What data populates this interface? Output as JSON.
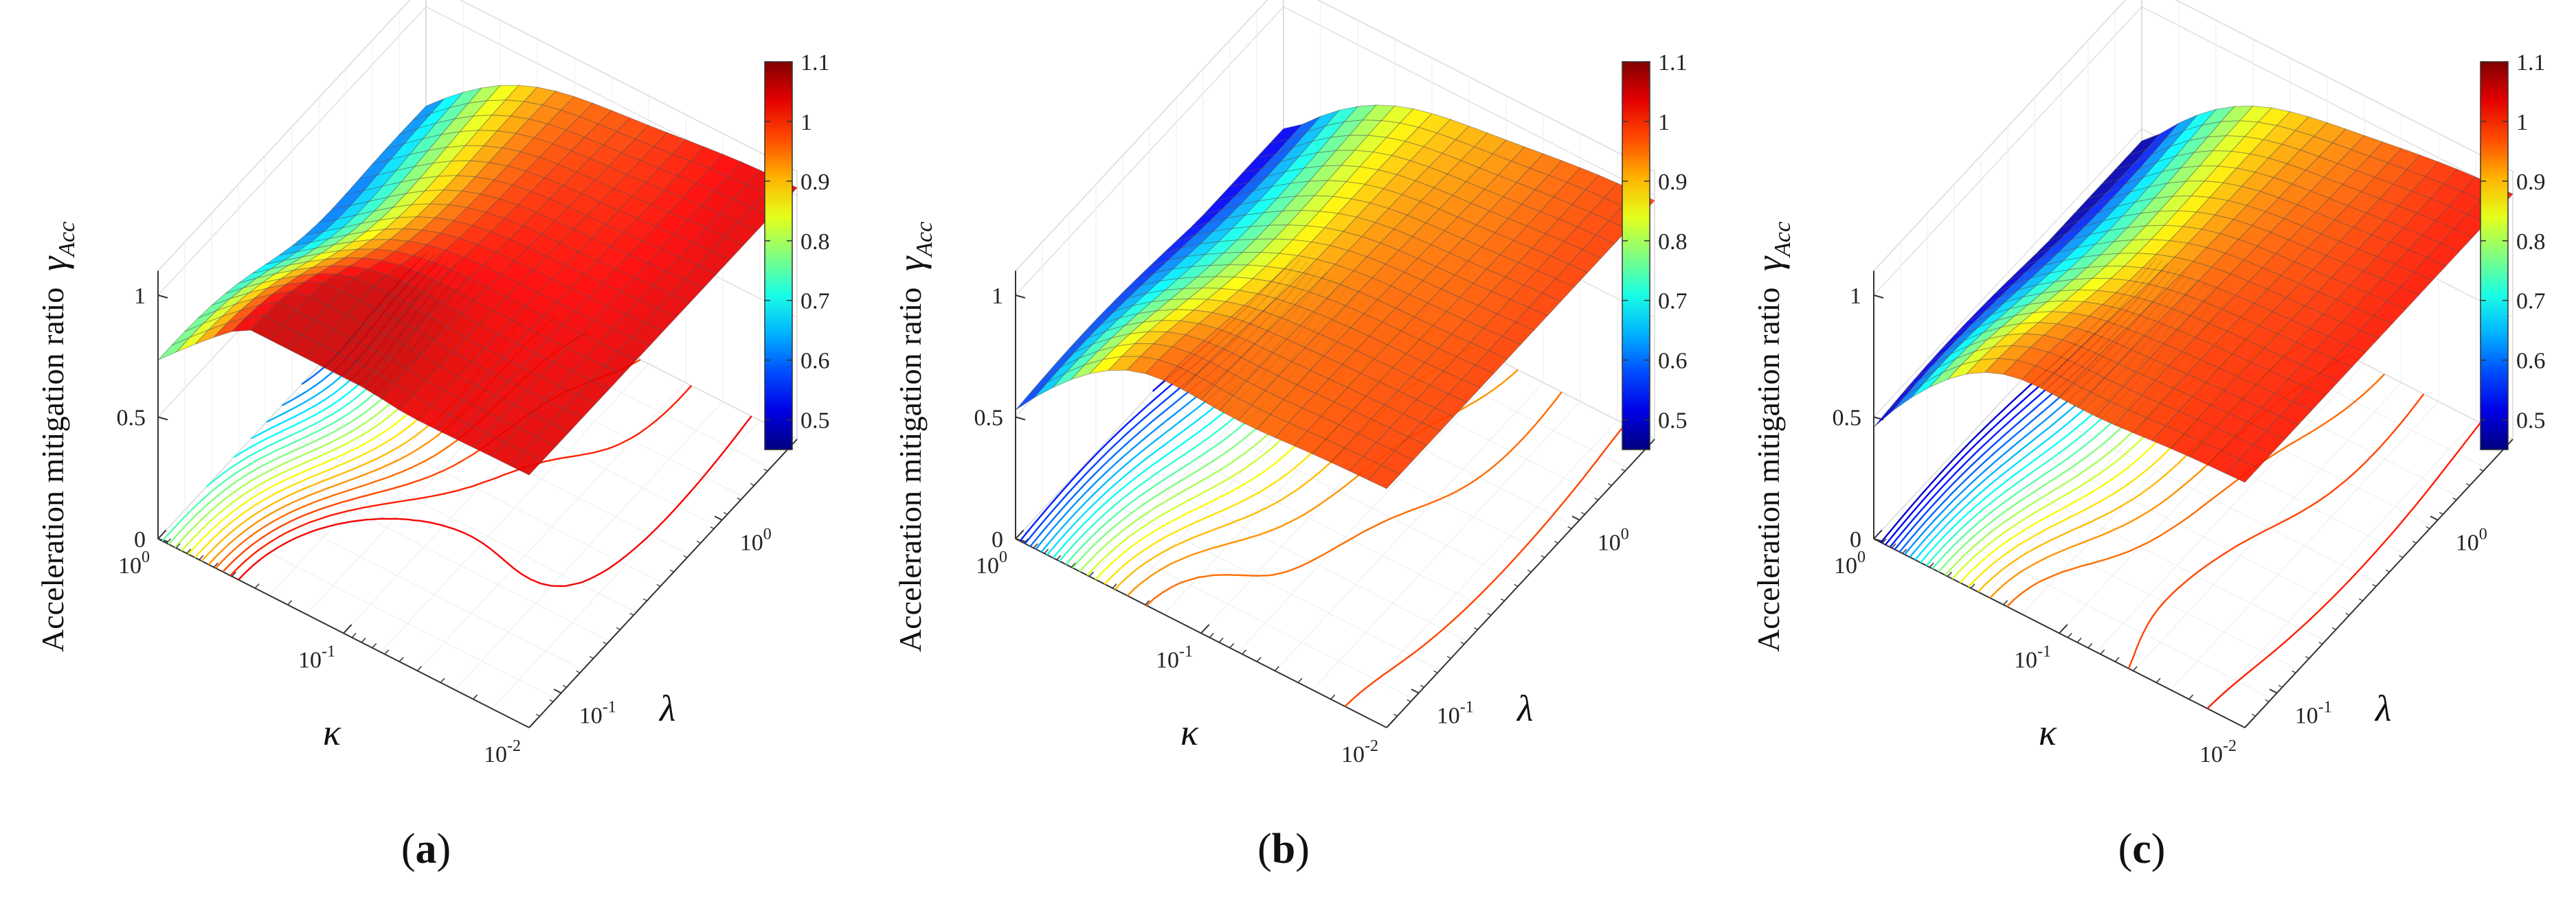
{
  "figure": {
    "z_axis_label": "Acceleration mitigation ratio",
    "z_symbol": "γ",
    "z_subscript": "Acc",
    "x_symbol": "κ",
    "y_symbol": "λ"
  },
  "chart_data": [
    {
      "type": "surface",
      "panel_label": "a",
      "zlabel": "Acceleration mitigation ratio γAcc",
      "xlabel": "κ",
      "ylabel": "λ",
      "x_scale": "log",
      "x_ticks": [
        "10^0",
        "10^-1",
        "10^-2"
      ],
      "x_range": [
        1,
        0.01
      ],
      "y_scale": "log",
      "y_ticks": [
        "10^-1",
        "10^0"
      ],
      "y_range": [
        0.1,
        5
      ],
      "z_ticks": [
        "0",
        "0.5",
        "1"
      ],
      "z_range": [
        0,
        1.1
      ],
      "colorbar": {
        "ticks": [
          "0.5",
          "0.6",
          "0.7",
          "0.8",
          "0.9",
          "1",
          "1.1"
        ],
        "range": [
          0.45,
          1.1
        ]
      },
      "grid": {
        "rows": 20,
        "cols": 20
      },
      "surface_shape": {
        "corner_k1_lamLow": 0.72,
        "corner_k1_lamHigh": 0.62,
        "corner_k01_lamLow": 1.05,
        "corner_k001_lamHigh": 0.95,
        "min_value": 0.58,
        "max_value": 1.05,
        "ridge_value": 1.05
      }
    },
    {
      "type": "surface",
      "panel_label": "b",
      "zlabel": "Acceleration mitigation ratio γAcc",
      "xlabel": "κ",
      "ylabel": "λ",
      "x_scale": "log",
      "x_ticks": [
        "10^0",
        "10^-1",
        "10^-2"
      ],
      "x_range": [
        1,
        0.01
      ],
      "y_scale": "log",
      "y_ticks": [
        "10^-1",
        "10^0"
      ],
      "y_range": [
        0.1,
        5
      ],
      "z_ticks": [
        "0",
        "0.5",
        "1"
      ],
      "z_range": [
        0,
        1.1
      ],
      "colorbar": {
        "ticks": [
          "0.5",
          "0.6",
          "0.7",
          "0.8",
          "0.9",
          "1",
          "1.1"
        ],
        "range": [
          0.45,
          1.1
        ]
      },
      "grid": {
        "rows": 20,
        "cols": 20
      },
      "surface_shape": {
        "corner_k1_lamLow": 0.52,
        "corner_k1_lamHigh": 0.5,
        "corner_k01_lamLow": 1.02,
        "corner_k001_lamHigh": 1.0,
        "min_value": 0.5,
        "max_value": 1.02,
        "ridge_value": 1.0
      }
    },
    {
      "type": "surface",
      "panel_label": "c",
      "zlabel": "Acceleration mitigation ratio γAcc",
      "xlabel": "κ",
      "ylabel": "λ",
      "x_scale": "log",
      "x_ticks": [
        "10^0",
        "10^-1",
        "10^-2"
      ],
      "x_range": [
        1,
        0.01
      ],
      "y_scale": "log",
      "y_ticks": [
        "10^-1",
        "10^0"
      ],
      "y_range": [
        0.1,
        5
      ],
      "z_ticks": [
        "0",
        "0.5",
        "1"
      ],
      "z_range": [
        0,
        1.1
      ],
      "colorbar": {
        "ticks": [
          "0.5",
          "0.6",
          "0.7",
          "0.8",
          "0.9",
          "1",
          "1.1"
        ],
        "range": [
          0.45,
          1.1
        ]
      },
      "grid": {
        "rows": 20,
        "cols": 20
      },
      "surface_shape": {
        "corner_k1_lamLow": 0.45,
        "corner_k1_lamHigh": 0.45,
        "corner_k01_lamLow": 1.0,
        "corner_k001_lamHigh": 1.02,
        "min_value": 0.45,
        "max_value": 1.03,
        "ridge_value": 1.03
      }
    }
  ]
}
